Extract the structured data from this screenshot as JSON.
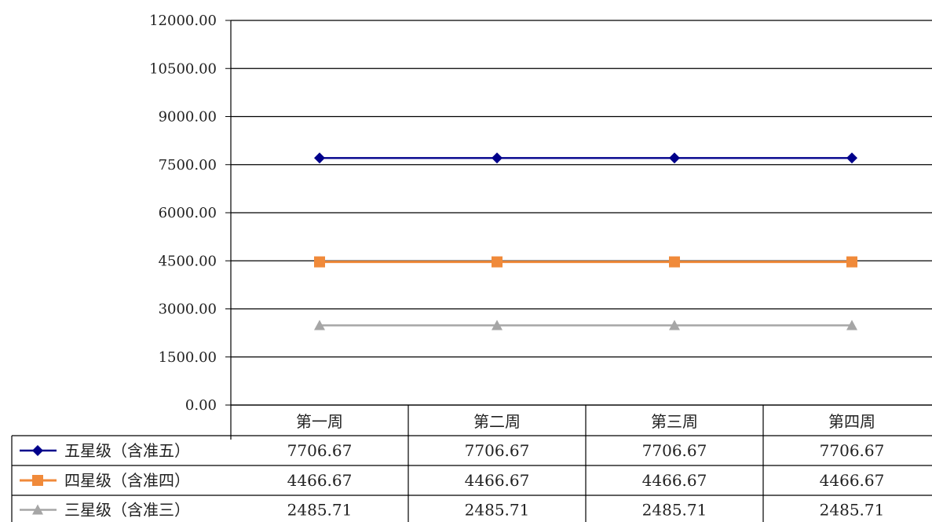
{
  "chart_data": {
    "type": "line",
    "categories": [
      "第一周",
      "第二周",
      "第三周",
      "第四周"
    ],
    "y_tick_labels": [
      "0.00",
      "1500.00",
      "3000.00",
      "4500.00",
      "6000.00",
      "7500.00",
      "9000.00",
      "10500.00",
      "12000.00"
    ],
    "ylim": [
      0,
      12000
    ],
    "grid": true,
    "legend_placement": "data-table-left",
    "series": [
      {
        "name": "五星级（含准五）",
        "values": [
          7706.67,
          7706.67,
          7706.67,
          7706.67
        ],
        "labels": [
          "7706.67",
          "7706.67",
          "7706.67",
          "7706.67"
        ],
        "color": "#00008B",
        "marker": "diamond"
      },
      {
        "name": "四星级（含准四）",
        "values": [
          4466.67,
          4466.67,
          4466.67,
          4466.67
        ],
        "labels": [
          "4466.67",
          "4466.67",
          "4466.67",
          "4466.67"
        ],
        "color": "#F08A3A",
        "marker": "square"
      },
      {
        "name": "三星级（含准三）",
        "values": [
          2485.71,
          2485.71,
          2485.71,
          2485.71
        ],
        "labels": [
          "2485.71",
          "2485.71",
          "2485.71",
          "2485.71"
        ],
        "color": "#A6A6A6",
        "marker": "triangle"
      }
    ]
  }
}
